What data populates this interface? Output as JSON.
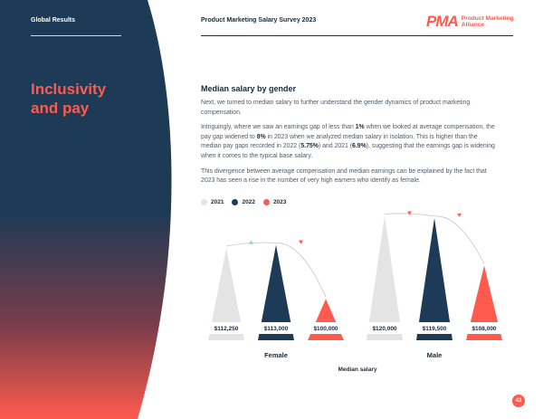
{
  "sidebar": {
    "label": "Global Results",
    "section_title_line1": "Inclusivity",
    "section_title_line2": "and pay"
  },
  "header": {
    "title": "Product Marketing Salary Survey 2023",
    "logo_mark": "PMA",
    "logo_text": "Product Marketing Alliance"
  },
  "content": {
    "heading": "Median salary by gender",
    "p1": "Next, we turned to median salary to further understand the gender dynamics of product marketing compensation.",
    "p2_a": "Intriguingly, where we saw an earnings gap of less than ",
    "p2_b": "1%",
    "p2_c": " when we looked at average compensation, the pay gap widened to ",
    "p2_d": "8%",
    "p2_e": " in 2023 when we analyzed median salary in isolation. This is higher than the median pay gaps recorded in 2022 (",
    "p2_f": "5.75%",
    "p2_g": ") and 2021 (",
    "p2_h": "6.9%",
    "p2_i": "), suggesting that the earnings gap is widening when it comes to the typical base salary.",
    "p3": "This divergence between average compensation and median earnings can be explained by the fact that 2023 has seen a rise in the number of very high earners who identify as female."
  },
  "legend": [
    {
      "label": "2021",
      "color": "#e4e4e4"
    },
    {
      "label": "2022",
      "color": "#1d3a56"
    },
    {
      "label": "2023",
      "color": "#ff5a4e"
    }
  ],
  "chart_data": {
    "type": "bar",
    "categories": [
      "Female",
      "Male"
    ],
    "xlabel": "Median salary",
    "series": [
      {
        "name": "2021",
        "values": [
          112250,
          120000
        ],
        "labels": [
          "$112,250",
          "$120,000"
        ],
        "color": "#e4e4e4"
      },
      {
        "name": "2022",
        "values": [
          113000,
          119500
        ],
        "labels": [
          "$113,000",
          "$119,500"
        ],
        "color": "#1d3a56"
      },
      {
        "name": "2023",
        "values": [
          100000,
          108000
        ],
        "labels": [
          "$100,000",
          "$108,000"
        ],
        "color": "#ff5a4e"
      }
    ]
  },
  "page_number": "43"
}
